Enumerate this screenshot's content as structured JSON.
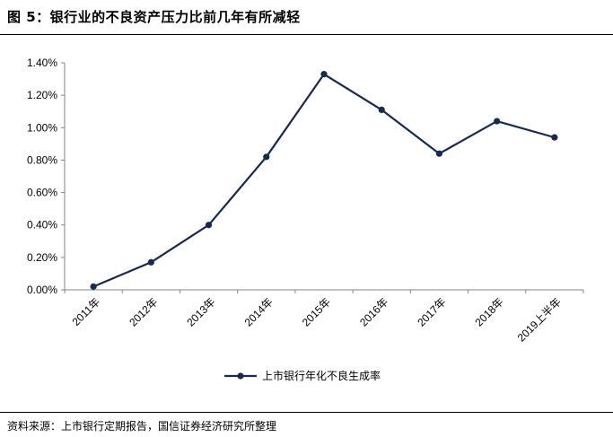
{
  "figure": {
    "title": "图 5：银行业的不良资产压力比前几年有所减轻",
    "source": "资料来源：上市银行定期报告，国信证券经济研究所整理"
  },
  "chart_data": {
    "type": "line",
    "title": "",
    "xlabel": "",
    "ylabel": "",
    "categories": [
      "2011年",
      "2012年",
      "2013年",
      "2014年",
      "2015年",
      "2016年",
      "2017年",
      "2018年",
      "2019上半年"
    ],
    "series": [
      {
        "name": "上市银行年化不良生成率",
        "values": [
          0.02,
          0.17,
          0.4,
          0.82,
          1.33,
          1.11,
          0.84,
          1.04,
          0.94
        ],
        "color": "#172a4f",
        "marker": "circle"
      }
    ],
    "y_ticks": [
      "0.00%",
      "0.20%",
      "0.40%",
      "0.60%",
      "0.80%",
      "1.00%",
      "1.20%",
      "1.40%"
    ],
    "ylim": [
      0,
      1.4
    ],
    "unit": "%",
    "grid": false,
    "legend": "bottom"
  }
}
